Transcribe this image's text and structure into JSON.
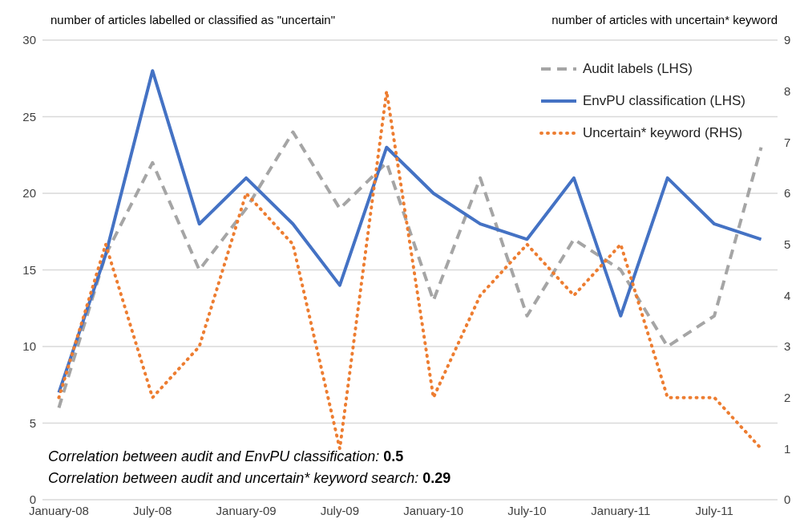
{
  "chart_data": {
    "type": "line",
    "ylabel": "number of articles labelled or classified as \"uncertain\"",
    "y2label": "number of articles with uncertain* keyword",
    "categories": [
      "January-08",
      null,
      "July-08",
      null,
      "January-09",
      null,
      "July-09",
      null,
      "January-10",
      null,
      "July-10",
      null,
      "January-11",
      null,
      "July-11",
      null
    ],
    "series": [
      {
        "name": "Audit labels (LHS)",
        "color": "#a5a5a5",
        "line_style": "dashed",
        "values": [
          6,
          16,
          22,
          15,
          19,
          24,
          19,
          22,
          13,
          21,
          12,
          17,
          15,
          10,
          12,
          23
        ]
      },
      {
        "name": "EnvPU classification (LHS)",
        "color": "#4472c4",
        "line_style": "solid",
        "values": [
          7,
          16,
          28,
          18,
          21,
          18,
          14,
          23,
          20,
          18,
          17,
          21,
          12,
          21,
          18,
          17
        ]
      },
      {
        "name": "Uncertain* keyword (RHS)",
        "color": "#ed7d31",
        "line_style": "dotted",
        "axis": "y2",
        "values": [
          2,
          5,
          2,
          3,
          6,
          5,
          1,
          8,
          2,
          4,
          5,
          4,
          5,
          2,
          2,
          1
        ]
      }
    ],
    "ylim": [
      0,
      30
    ],
    "yticks": [
      0,
      5,
      10,
      15,
      20,
      25,
      30
    ],
    "y2lim": [
      0,
      9
    ],
    "y2ticks": [
      0,
      1,
      2,
      3,
      4,
      5,
      6,
      7,
      8,
      9
    ],
    "grid": "y",
    "legend": "top right",
    "marker": "none",
    "annotations": [
      "Correlation between audit and EnvPU classification: 0.5",
      "Correlation between audit and uncertain* keyword search: 0.29"
    ]
  }
}
